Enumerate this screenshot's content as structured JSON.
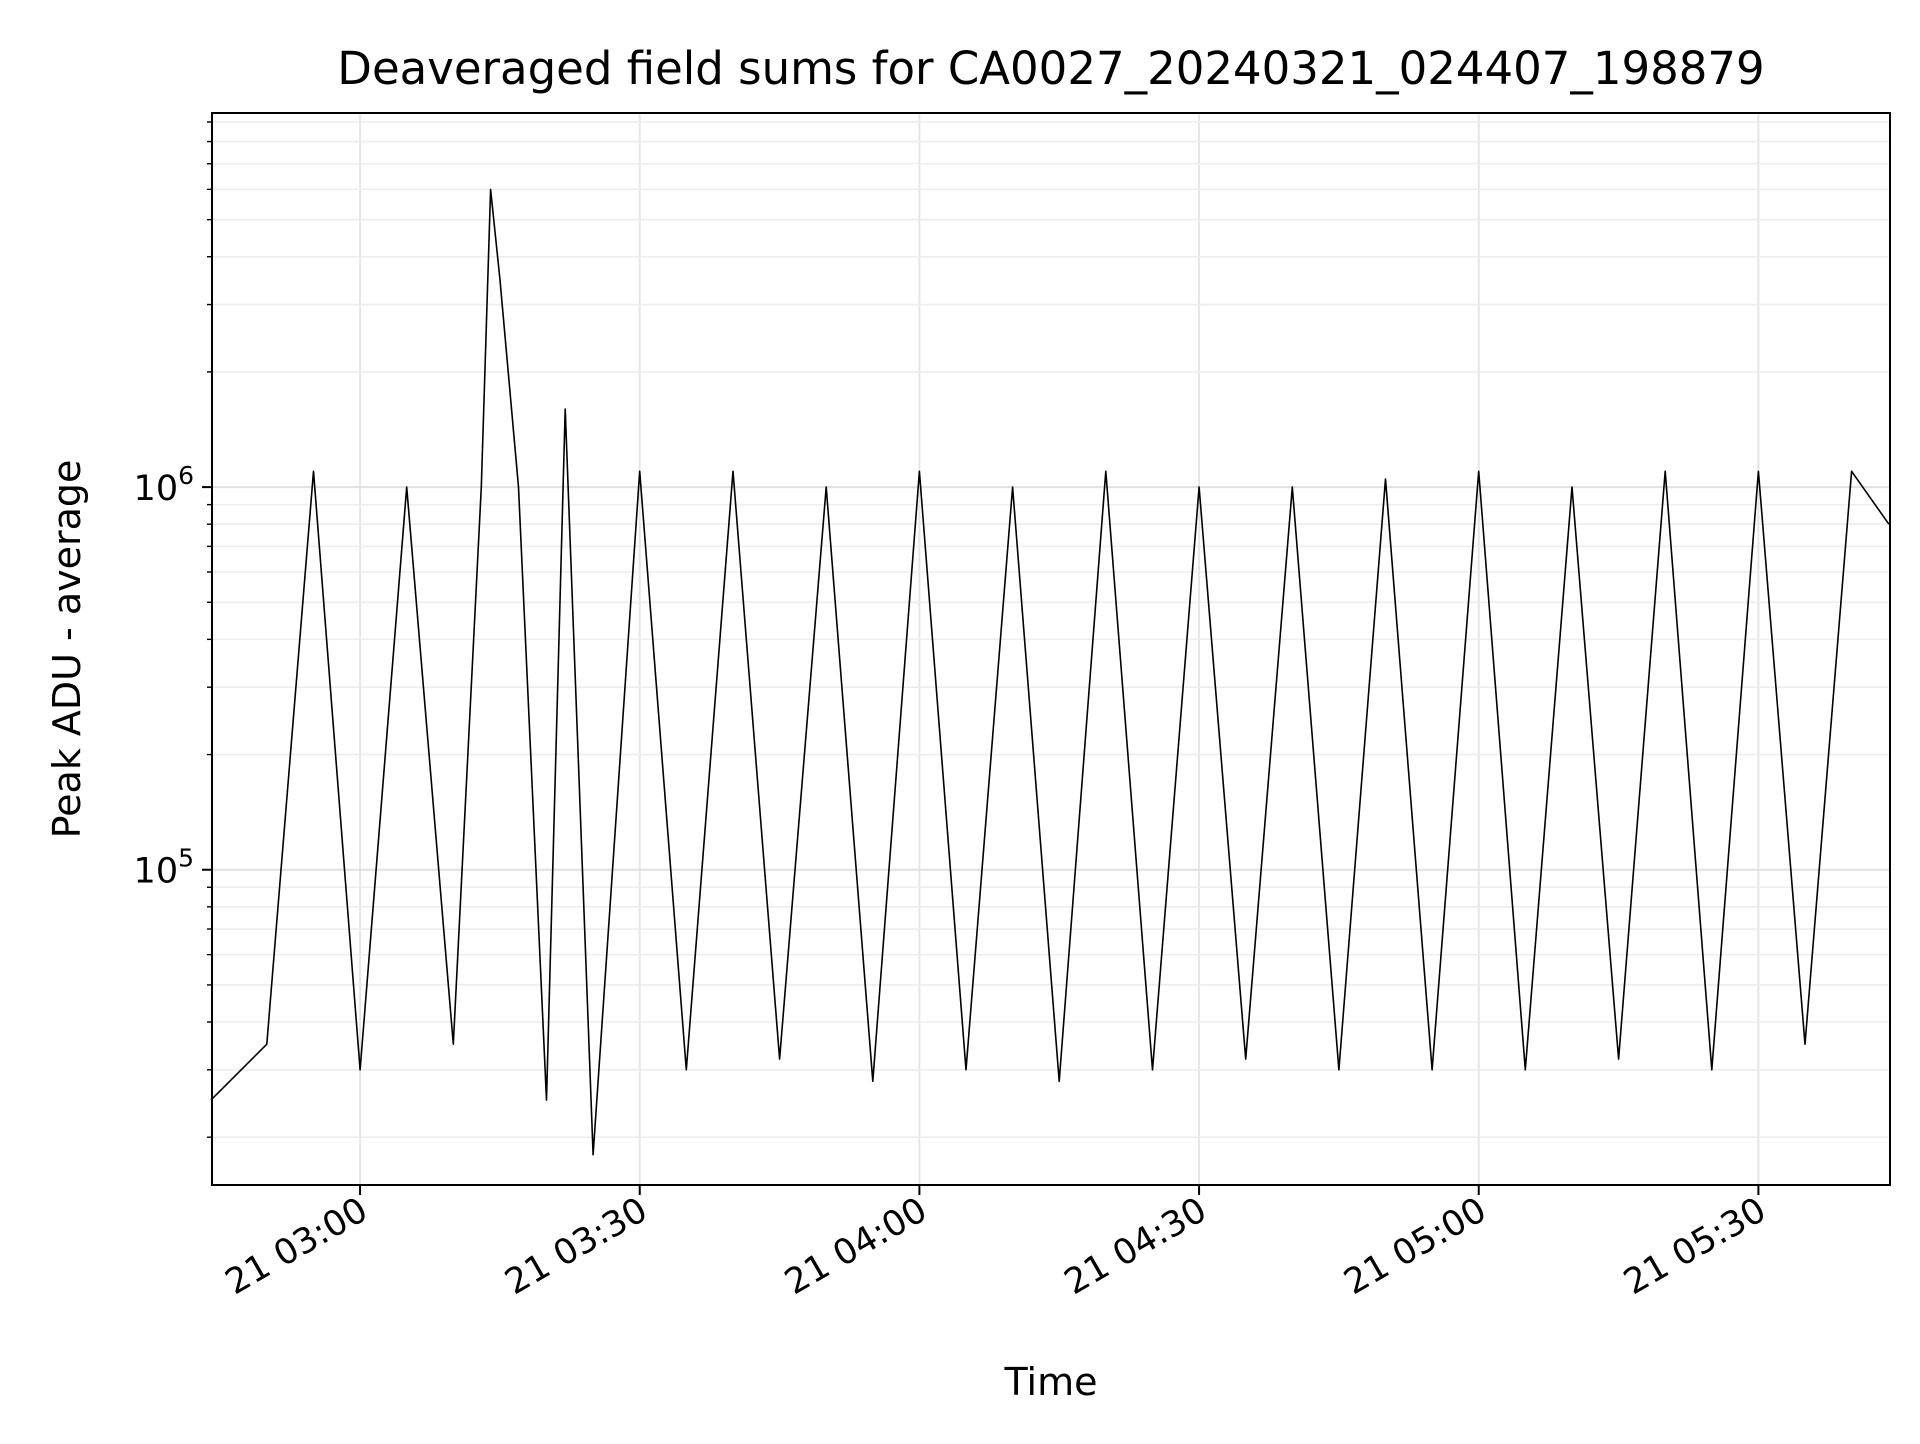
{
  "chart_data": {
    "type": "line",
    "title": "Deaveraged field sums for CA0027_20240321_024407_198879",
    "xlabel": "Time",
    "ylabel": "Peak ADU - average",
    "x_axis": {
      "type": "time",
      "range": [
        "2024-03-21T02:44:07",
        "2024-03-21T05:44:07"
      ]
    },
    "y_axis": {
      "type": "log",
      "range": [
        15000,
        9500000
      ]
    },
    "x_ticks": [
      {
        "value": "2024-03-21T03:00",
        "label": "21 03:00"
      },
      {
        "value": "2024-03-21T03:30",
        "label": "21 03:30"
      },
      {
        "value": "2024-03-21T04:00",
        "label": "21 04:00"
      },
      {
        "value": "2024-03-21T04:30",
        "label": "21 04:30"
      },
      {
        "value": "2024-03-21T05:00",
        "label": "21 05:00"
      },
      {
        "value": "2024-03-21T05:30",
        "label": "21 05:30"
      }
    ],
    "y_ticks": [
      {
        "value": 100000,
        "base": "10",
        "exp": "5"
      },
      {
        "value": 1000000,
        "base": "10",
        "exp": "6"
      }
    ],
    "grid": true,
    "line_color": "#000000",
    "series": [
      {
        "x": [
          "2024-03-21T02:44",
          "2024-03-21T02:50",
          "2024-03-21T02:55",
          "2024-03-21T03:00",
          "2024-03-21T03:05",
          "2024-03-21T03:10",
          "2024-03-21T03:13",
          "2024-03-21T03:14",
          "2024-03-21T03:15",
          "2024-03-21T03:17",
          "2024-03-21T03:20",
          "2024-03-21T03:22",
          "2024-03-21T03:25",
          "2024-03-21T03:30",
          "2024-03-21T03:35",
          "2024-03-21T03:40",
          "2024-03-21T03:45",
          "2024-03-21T03:50",
          "2024-03-21T03:55",
          "2024-03-21T04:00",
          "2024-03-21T04:05",
          "2024-03-21T04:10",
          "2024-03-21T04:15",
          "2024-03-21T04:20",
          "2024-03-21T04:25",
          "2024-03-21T04:30",
          "2024-03-21T04:35",
          "2024-03-21T04:40",
          "2024-03-21T04:45",
          "2024-03-21T04:50",
          "2024-03-21T04:55",
          "2024-03-21T05:00",
          "2024-03-21T05:05",
          "2024-03-21T05:10",
          "2024-03-21T05:15",
          "2024-03-21T05:20",
          "2024-03-21T05:25",
          "2024-03-21T05:30",
          "2024-03-21T05:35",
          "2024-03-21T05:40",
          "2024-03-21T05:44"
        ],
        "y": [
          25000,
          35000,
          1100000,
          30000,
          1000000,
          35000,
          1000000,
          6000000,
          3500000,
          1000000,
          25000,
          1600000,
          18000,
          1100000,
          30000,
          1100000,
          32000,
          1000000,
          28000,
          1100000,
          30000,
          1000000,
          28000,
          1100000,
          30000,
          1000000,
          32000,
          1000000,
          30000,
          1050000,
          30000,
          1100000,
          30000,
          1000000,
          32000,
          1100000,
          30000,
          1100000,
          35000,
          1100000,
          800000
        ]
      }
    ]
  }
}
